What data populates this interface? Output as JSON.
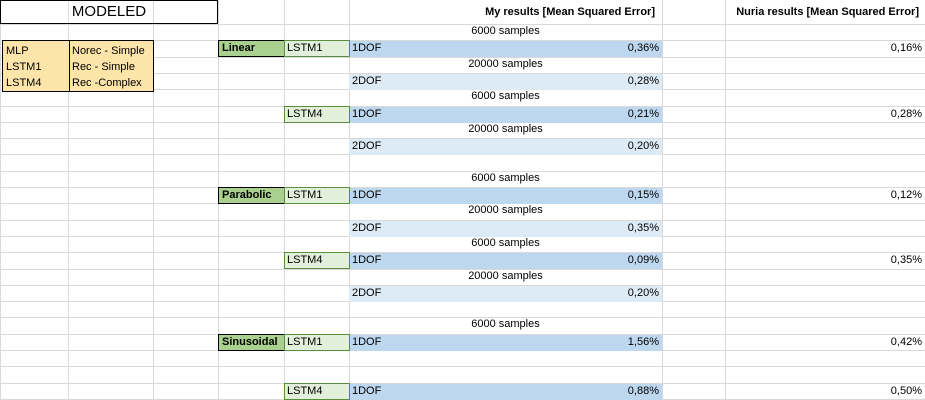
{
  "title": "MODELED",
  "legend": [
    {
      "code": "MLP",
      "desc": "Norec - Simple"
    },
    {
      "code": "LSTM1",
      "desc": "Rec - Simple"
    },
    {
      "code": "LSTM4",
      "desc": "Rec -Complex"
    }
  ],
  "headers": {
    "my_results": "My results [Mean Squared Error]",
    "nuria_results": "Nuria results [Mean Squared Error]"
  },
  "rows": [
    {
      "samples": "6000 samples"
    },
    {
      "func": "Linear",
      "model": "LSTM1",
      "dof": "1DOF",
      "mine": "0,36%",
      "nuria": "0,16%",
      "shade": "blue"
    },
    {
      "samples": "20000 samples"
    },
    {
      "dof": "2DOF",
      "mine": "0,28%",
      "shade": "lblue"
    },
    {
      "samples": "6000 samples"
    },
    {
      "model": "LSTM4",
      "dof": "1DOF",
      "mine": "0,21%",
      "nuria": "0,28%",
      "shade": "blue"
    },
    {
      "samples": "20000 samples"
    },
    {
      "dof": "2DOF",
      "mine": "0,20%",
      "shade": "lblue"
    },
    {},
    {
      "samples": "6000 samples"
    },
    {
      "func": "Parabolic",
      "model": "LSTM1",
      "dof": "1DOF",
      "mine": "0,15%",
      "nuria": "0,12%",
      "shade": "blue"
    },
    {
      "samples": "20000 samples"
    },
    {
      "dof": "2DOF",
      "mine": "0,35%",
      "shade": "lblue"
    },
    {
      "samples": "6000 samples"
    },
    {
      "model": "LSTM4",
      "dof": "1DOF",
      "mine": "0,09%",
      "nuria": "0,35%",
      "shade": "blue"
    },
    {
      "samples": "20000 samples"
    },
    {
      "dof": "2DOF",
      "mine": "0,20%",
      "shade": "lblue"
    },
    {},
    {
      "samples": "6000 samples"
    },
    {
      "func": "Sinusoidal",
      "model": "LSTM1",
      "dof": "1DOF",
      "mine": "1,56%",
      "nuria": "0,42%",
      "shade": "blue"
    },
    {},
    {},
    {
      "model": "LSTM4",
      "dof": "1DOF",
      "mine": "0,88%",
      "nuria": "0,50%",
      "shade": "blue"
    }
  ]
}
